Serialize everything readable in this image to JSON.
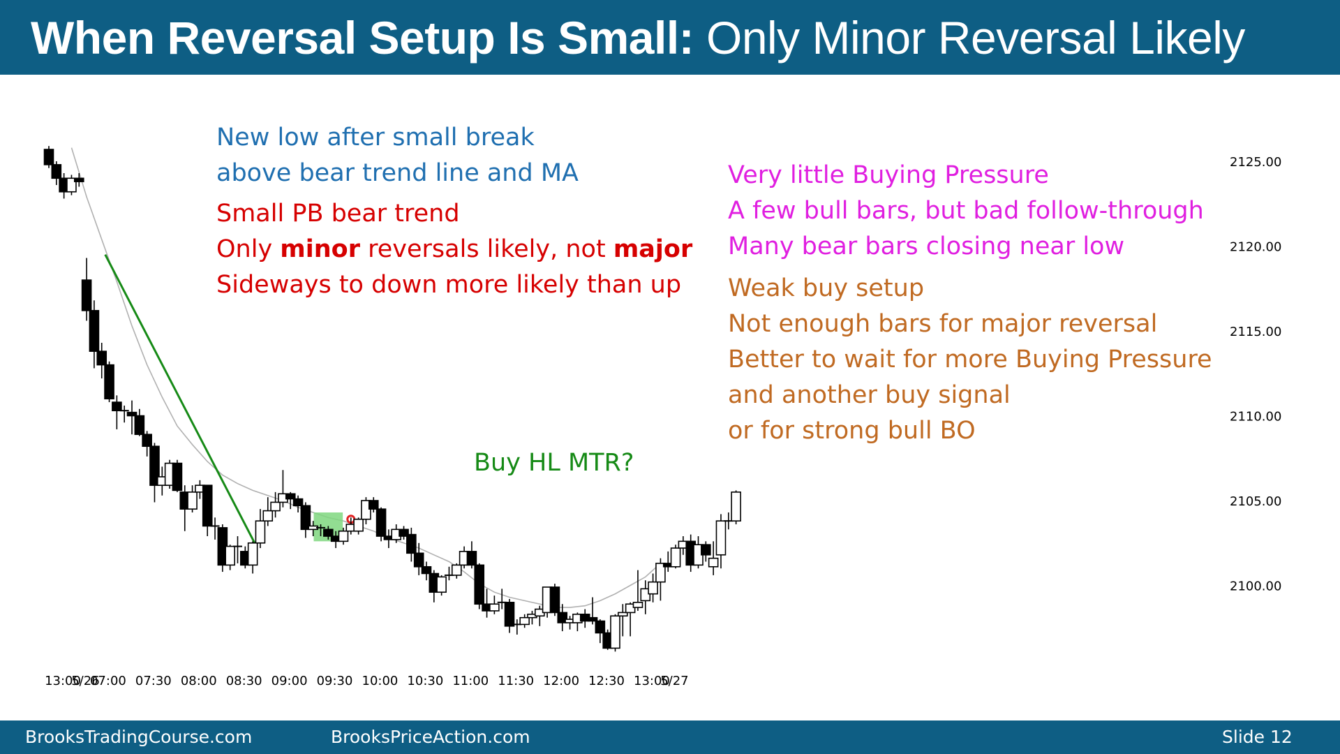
{
  "slide": {
    "title_bold": "When Reversal Setup Is Small:",
    "title_rest": " Only Minor Reversal Likely",
    "footer_left": "BrooksTradingCourse.com",
    "footer_mid": "BrooksPriceAction.com",
    "footer_right": "Slide  12"
  },
  "notes": {
    "blue": [
      "New low after small break",
      "above bear trend line and MA"
    ],
    "red_1": "Small PB bear trend",
    "red_2": {
      "a": "Only ",
      "b": "minor",
      "c": " reversals likely, not ",
      "d": "major"
    },
    "red_3": "Sideways to down more likely than up",
    "magenta": [
      "Very little Buying Pressure",
      "A few bull bars, but bad follow-through",
      "Many bear bars closing near low"
    ],
    "orange": [
      "Weak buy setup",
      "Not enough bars for major reversal",
      "Better to wait for more Buying Pressure",
      "and another buy signal",
      "or for strong bull BO"
    ],
    "green": "Buy HL MTR?"
  },
  "colors": {
    "title_bg": "#0e5e84",
    "bear_candle": "#000000",
    "bull_candle": "#ffffff",
    "moving_average": "#b0b0b0",
    "trend_line": "#168a16",
    "signal_highlight": "#7fd77f",
    "entry_marker": "#e02020"
  },
  "chart_data": {
    "type": "candlestick",
    "y_tick_labels": [
      "2125.00",
      "2120.00",
      "2115.00",
      "2110.00",
      "2105.00",
      "2100.00"
    ],
    "y_ticks": [
      2125,
      2120,
      2115,
      2110,
      2105,
      2100
    ],
    "ylim": [
      2094.5,
      2126.5
    ],
    "x_tick_labels": [
      "13:00",
      "5/26",
      "07:00",
      "07:30",
      "08:00",
      "08:30",
      "09:00",
      "09:30",
      "10:00",
      "10:30",
      "11:00",
      "11:30",
      "12:00",
      "12:30",
      "13:00",
      "5/27"
    ],
    "x_tick_bar_index": [
      0,
      3,
      6,
      12,
      18,
      24,
      30,
      36,
      42,
      48,
      54,
      60,
      66,
      72,
      78,
      81
    ],
    "bar_minutes": 5,
    "session_open_index": 5,
    "annotations": {
      "bear_trend_line": {
        "from_bar": 7,
        "from_price": 2119.5,
        "to_bar": 27,
        "to_price": 2102.4
      },
      "signal_bar_highlight_bars": [
        36,
        38
      ],
      "entry_marker_bar": 40
    },
    "bars": [
      {
        "o": 2125.7,
        "h": 2125.9,
        "l": 2124.6,
        "c": 2124.8
      },
      {
        "o": 2124.8,
        "h": 2125.0,
        "l": 2123.6,
        "c": 2124.0
      },
      {
        "o": 2124.0,
        "h": 2124.3,
        "l": 2122.8,
        "c": 2123.2
      },
      {
        "o": 2123.2,
        "h": 2124.2,
        "l": 2123.0,
        "c": 2124.0
      },
      {
        "o": 2124.0,
        "h": 2124.3,
        "l": 2123.5,
        "c": 2123.8
      },
      {
        "o": 2118.0,
        "h": 2119.3,
        "l": 2115.6,
        "c": 2116.2
      },
      {
        "o": 2116.2,
        "h": 2116.8,
        "l": 2112.8,
        "c": 2113.8
      },
      {
        "o": 2113.8,
        "h": 2114.3,
        "l": 2112.2,
        "c": 2113.0
      },
      {
        "o": 2113.0,
        "h": 2113.2,
        "l": 2110.8,
        "c": 2111.0
      },
      {
        "o": 2110.8,
        "h": 2111.2,
        "l": 2109.2,
        "c": 2110.3
      },
      {
        "o": 2110.3,
        "h": 2110.6,
        "l": 2109.6,
        "c": 2110.2
      },
      {
        "o": 2110.2,
        "h": 2110.9,
        "l": 2108.9,
        "c": 2110.0
      },
      {
        "o": 2110.0,
        "h": 2110.4,
        "l": 2108.8,
        "c": 2108.9
      },
      {
        "o": 2108.9,
        "h": 2109.1,
        "l": 2107.6,
        "c": 2108.2
      },
      {
        "o": 2108.2,
        "h": 2108.4,
        "l": 2104.9,
        "c": 2105.9
      },
      {
        "o": 2105.9,
        "h": 2107.0,
        "l": 2105.3,
        "c": 2106.4
      },
      {
        "o": 2105.9,
        "h": 2107.4,
        "l": 2105.7,
        "c": 2107.2
      },
      {
        "o": 2107.2,
        "h": 2107.4,
        "l": 2105.5,
        "c": 2105.6
      },
      {
        "o": 2105.5,
        "h": 2105.9,
        "l": 2103.2,
        "c": 2104.5
      },
      {
        "o": 2104.5,
        "h": 2105.9,
        "l": 2104.3,
        "c": 2105.5
      },
      {
        "o": 2105.5,
        "h": 2106.2,
        "l": 2105.1,
        "c": 2105.9
      },
      {
        "o": 2105.9,
        "h": 2105.9,
        "l": 2102.9,
        "c": 2103.5
      },
      {
        "o": 2103.5,
        "h": 2104.0,
        "l": 2102.7,
        "c": 2103.4
      },
      {
        "o": 2103.4,
        "h": 2103.6,
        "l": 2100.8,
        "c": 2101.2
      },
      {
        "o": 2101.2,
        "h": 2102.4,
        "l": 2100.9,
        "c": 2102.3
      },
      {
        "o": 2102.3,
        "h": 2102.9,
        "l": 2101.3,
        "c": 2102.3
      },
      {
        "o": 2102.0,
        "h": 2102.3,
        "l": 2101.0,
        "c": 2101.2
      },
      {
        "o": 2101.2,
        "h": 2102.6,
        "l": 2100.7,
        "c": 2102.5
      },
      {
        "o": 2102.5,
        "h": 2104.5,
        "l": 2102.2,
        "c": 2103.8
      },
      {
        "o": 2103.8,
        "h": 2105.2,
        "l": 2103.5,
        "c": 2104.4
      },
      {
        "o": 2104.4,
        "h": 2105.5,
        "l": 2104.0,
        "c": 2104.9
      },
      {
        "o": 2104.9,
        "h": 2106.8,
        "l": 2104.6,
        "c": 2105.4
      },
      {
        "o": 2105.4,
        "h": 2105.5,
        "l": 2104.5,
        "c": 2105.1
      },
      {
        "o": 2105.1,
        "h": 2105.3,
        "l": 2104.3,
        "c": 2104.7
      },
      {
        "o": 2104.7,
        "h": 2104.9,
        "l": 2102.8,
        "c": 2103.3
      },
      {
        "o": 2103.3,
        "h": 2103.8,
        "l": 2102.9,
        "c": 2103.5
      },
      {
        "o": 2103.4,
        "h": 2103.6,
        "l": 2102.9,
        "c": 2103.3
      },
      {
        "o": 2103.3,
        "h": 2103.5,
        "l": 2102.7,
        "c": 2102.9
      },
      {
        "o": 2102.9,
        "h": 2103.2,
        "l": 2102.2,
        "c": 2102.6
      },
      {
        "o": 2102.6,
        "h": 2103.4,
        "l": 2102.4,
        "c": 2103.2
      },
      {
        "o": 2103.2,
        "h": 2104.0,
        "l": 2103.0,
        "c": 2103.6
      },
      {
        "o": 2103.2,
        "h": 2104.0,
        "l": 2103.0,
        "c": 2103.9
      },
      {
        "o": 2103.9,
        "h": 2105.2,
        "l": 2103.6,
        "c": 2105.0
      },
      {
        "o": 2105.0,
        "h": 2105.2,
        "l": 2104.3,
        "c": 2104.5
      },
      {
        "o": 2104.5,
        "h": 2104.6,
        "l": 2102.6,
        "c": 2102.9
      },
      {
        "o": 2102.9,
        "h": 2103.3,
        "l": 2102.2,
        "c": 2102.7
      },
      {
        "o": 2102.7,
        "h": 2103.6,
        "l": 2102.5,
        "c": 2103.3
      },
      {
        "o": 2103.3,
        "h": 2103.5,
        "l": 2102.7,
        "c": 2102.9
      },
      {
        "o": 2103.0,
        "h": 2103.4,
        "l": 2101.4,
        "c": 2101.9
      },
      {
        "o": 2101.9,
        "h": 2102.5,
        "l": 2100.6,
        "c": 2101.1
      },
      {
        "o": 2101.1,
        "h": 2101.4,
        "l": 2100.3,
        "c": 2100.7
      },
      {
        "o": 2100.7,
        "h": 2100.9,
        "l": 2099.0,
        "c": 2099.6
      },
      {
        "o": 2099.6,
        "h": 2100.6,
        "l": 2099.4,
        "c": 2100.5
      },
      {
        "o": 2100.5,
        "h": 2101.1,
        "l": 2100.3,
        "c": 2100.6
      },
      {
        "o": 2100.6,
        "h": 2101.3,
        "l": 2100.4,
        "c": 2101.2
      },
      {
        "o": 2101.2,
        "h": 2102.3,
        "l": 2101.0,
        "c": 2102.0
      },
      {
        "o": 2102.0,
        "h": 2102.6,
        "l": 2101.0,
        "c": 2101.2
      }
    ],
    "bars_tail": [
      {
        "o": 2101.2,
        "h": 2101.3,
        "l": 2098.6,
        "c": 2098.9
      },
      {
        "o": 2098.9,
        "h": 2099.8,
        "l": 2098.1,
        "c": 2098.5
      },
      {
        "o": 2098.5,
        "h": 2099.4,
        "l": 2098.3,
        "c": 2098.9
      },
      {
        "o": 2098.9,
        "h": 2099.8,
        "l": 2098.6,
        "c": 2099.0
      },
      {
        "o": 2099.0,
        "h": 2099.2,
        "l": 2097.2,
        "c": 2097.6
      },
      {
        "o": 2097.6,
        "h": 2098.0,
        "l": 2097.1,
        "c": 2097.7
      },
      {
        "o": 2097.7,
        "h": 2098.3,
        "l": 2097.5,
        "c": 2098.1
      },
      {
        "o": 2098.1,
        "h": 2098.5,
        "l": 2097.7,
        "c": 2098.3
      },
      {
        "o": 2098.2,
        "h": 2098.8,
        "l": 2097.6,
        "c": 2098.6
      },
      {
        "o": 2098.4,
        "h": 2099.9,
        "l": 2098.1,
        "c": 2099.9
      },
      {
        "o": 2099.9,
        "h": 2100.1,
        "l": 2098.2,
        "c": 2098.4
      },
      {
        "o": 2098.4,
        "h": 2098.9,
        "l": 2097.3,
        "c": 2097.8
      },
      {
        "o": 2097.8,
        "h": 2098.2,
        "l": 2097.4,
        "c": 2098.0
      },
      {
        "o": 2097.8,
        "h": 2098.4,
        "l": 2097.3,
        "c": 2098.3
      },
      {
        "o": 2098.3,
        "h": 2098.6,
        "l": 2097.5,
        "c": 2097.9
      },
      {
        "o": 2098.1,
        "h": 2099.3,
        "l": 2097.7,
        "c": 2097.9
      },
      {
        "o": 2097.9,
        "h": 2098.0,
        "l": 2096.6,
        "c": 2097.2
      },
      {
        "o": 2097.2,
        "h": 2097.4,
        "l": 2096.2,
        "c": 2096.3
      },
      {
        "o": 2096.3,
        "h": 2098.3,
        "l": 2096.1,
        "c": 2098.2
      },
      {
        "o": 2098.2,
        "h": 2098.9,
        "l": 2097.0,
        "c": 2098.4
      },
      {
        "o": 2098.4,
        "h": 2099.0,
        "l": 2097.0,
        "c": 2098.9
      },
      {
        "o": 2098.7,
        "h": 2100.9,
        "l": 2098.5,
        "c": 2099.0
      },
      {
        "o": 2099.1,
        "h": 2100.3,
        "l": 2098.3,
        "c": 2099.8
      },
      {
        "o": 2099.5,
        "h": 2100.7,
        "l": 2099.0,
        "c": 2100.2
      },
      {
        "o": 2100.2,
        "h": 2101.6,
        "l": 2099.1,
        "c": 2101.3
      },
      {
        "o": 2101.3,
        "h": 2102.0,
        "l": 2100.8,
        "c": 2101.1
      },
      {
        "o": 2101.1,
        "h": 2102.4,
        "l": 2101.0,
        "c": 2102.2
      },
      {
        "o": 2102.2,
        "h": 2102.9,
        "l": 2101.8,
        "c": 2102.6
      },
      {
        "o": 2102.6,
        "h": 2103.0,
        "l": 2100.8,
        "c": 2101.2
      },
      {
        "o": 2101.2,
        "h": 2102.9,
        "l": 2101.0,
        "c": 2102.4
      },
      {
        "o": 2102.4,
        "h": 2102.6,
        "l": 2101.4,
        "c": 2101.8
      },
      {
        "o": 2101.1,
        "h": 2102.6,
        "l": 2100.6,
        "c": 2101.6
      },
      {
        "o": 2101.8,
        "h": 2104.2,
        "l": 2101.0,
        "c": 2103.8
      },
      {
        "o": 2103.8,
        "h": 2104.3,
        "l": 2103.3,
        "c": 2103.8
      },
      {
        "o": 2103.8,
        "h": 2105.6,
        "l": 2103.6,
        "c": 2105.5
      }
    ],
    "moving_average": {
      "bar_index": [
        3,
        5,
        7,
        9,
        11,
        13,
        15,
        17,
        19,
        21,
        23,
        25,
        27,
        29,
        31,
        33,
        35,
        37,
        39,
        41,
        43,
        45,
        47,
        49,
        51,
        53,
        55,
        57,
        59,
        61,
        63,
        65,
        67,
        69,
        71,
        73,
        75,
        77,
        79,
        81
      ],
      "values": [
        2125.8,
        2122.9,
        2120.4,
        2117.9,
        2115.3,
        2113.0,
        2111.1,
        2109.4,
        2108.3,
        2107.3,
        2106.5,
        2106.0,
        2105.6,
        2105.3,
        2105.0,
        2104.6,
        2104.3,
        2104.0,
        2103.8,
        2103.5,
        2103.2,
        2102.8,
        2102.5,
        2102.2,
        2101.8,
        2101.4,
        2100.8,
        2100.1,
        2099.6,
        2099.3,
        2099.1,
        2098.9,
        2098.7,
        2098.7,
        2098.8,
        2099.1,
        2099.5,
        2100.0,
        2100.5,
        2101.3
      ]
    }
  }
}
